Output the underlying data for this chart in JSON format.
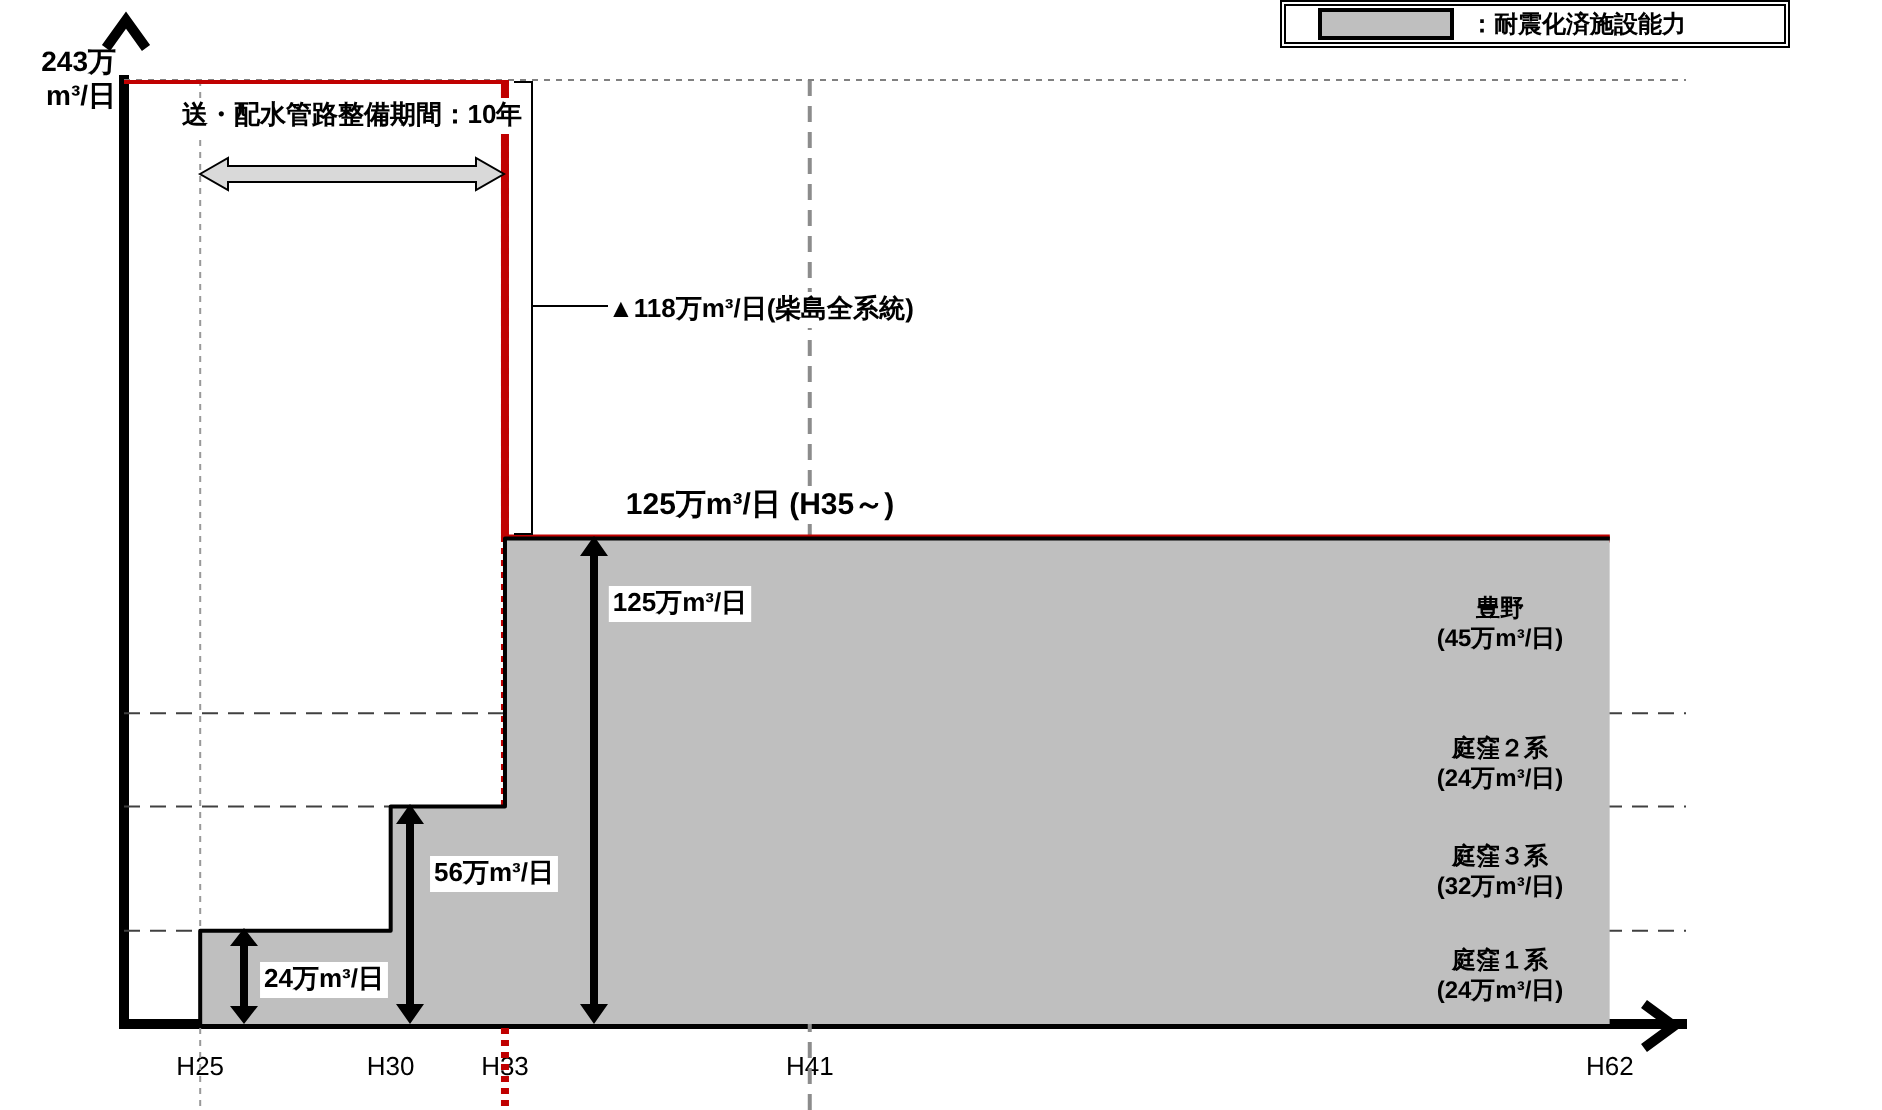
{
  "chart_data": {
    "type": "step",
    "categories": [
      null,
      null,
      "H25",
      null,
      null,
      null,
      null,
      "H30",
      null,
      null,
      "H33",
      null,
      null,
      null,
      null,
      null,
      null,
      null,
      "H41",
      null,
      null,
      null,
      null,
      null,
      null,
      null,
      null,
      null,
      null,
      null,
      null,
      null,
      null,
      null,
      null,
      null,
      null,
      null,
      null,
      "H62",
      null,
      null
    ],
    "ylim": [
      0,
      243
    ],
    "yticks": [
      {
        "value": 243,
        "label": "243万m³/日"
      }
    ],
    "grid": false,
    "legend": "top right",
    "marker": "none",
    "series": [
      {
        "name": "：耐震化済施設能力",
        "type": "area",
        "color": "#bfbfbf",
        "values": [
          null,
          0,
          24,
          24,
          24,
          24,
          24,
          56,
          56,
          56,
          125,
          125,
          125,
          125,
          125,
          125,
          125,
          125,
          125,
          125,
          125,
          125,
          125,
          125,
          125,
          125,
          125,
          125,
          125,
          125,
          125,
          125,
          125,
          125,
          125,
          125,
          125,
          125,
          125,
          125,
          null,
          null
        ]
      },
      {
        "color": "#c00000",
        "values": [
          243,
          243,
          243,
          243,
          243,
          243,
          243,
          243,
          243,
          243,
          125,
          125,
          125,
          125,
          125,
          125,
          125,
          125,
          125,
          125,
          125,
          125,
          125,
          125,
          125,
          125,
          125,
          125,
          125,
          125,
          125,
          125,
          125,
          125,
          125,
          125,
          125,
          125,
          125,
          125,
          null,
          null
        ]
      }
    ],
    "ref_lines": [
      {
        "axis": "x",
        "value": "H25",
        "color": "#999999",
        "line_style": "dotted"
      },
      {
        "axis": "x",
        "value": "H41",
        "color": "#8c8c8c",
        "line_style": "dashed"
      },
      {
        "axis": "x",
        "value": "H33",
        "color": "#c00000",
        "line_style": "dotted"
      },
      {
        "axis": "y",
        "value": 243,
        "color": "#808080",
        "line_style": "dotted"
      },
      {
        "axis": "y",
        "value": 24,
        "color": "#404040",
        "line_style": "dashed"
      },
      {
        "axis": "y",
        "value": 56,
        "color": "#404040",
        "line_style": "dashed"
      },
      {
        "axis": "y",
        "value": 80,
        "color": "#404040",
        "line_style": "dashed"
      }
    ],
    "annotations": [
      "送・配水管路整備期間：10年",
      {
        "text": "▲118万m³/日(柴島全系統)",
        "x": "H33",
        "y": 243
      },
      "125万m³/日 (H35～)",
      "125万m³/日",
      "56万m³/日",
      "24万m³/日",
      "豊野\n(45万m³/日)",
      "庭窪２系\n(24万m³/日)",
      "庭窪３系\n(32万m³/日)",
      "庭窪１系\n(24万m³/日)"
    ]
  }
}
